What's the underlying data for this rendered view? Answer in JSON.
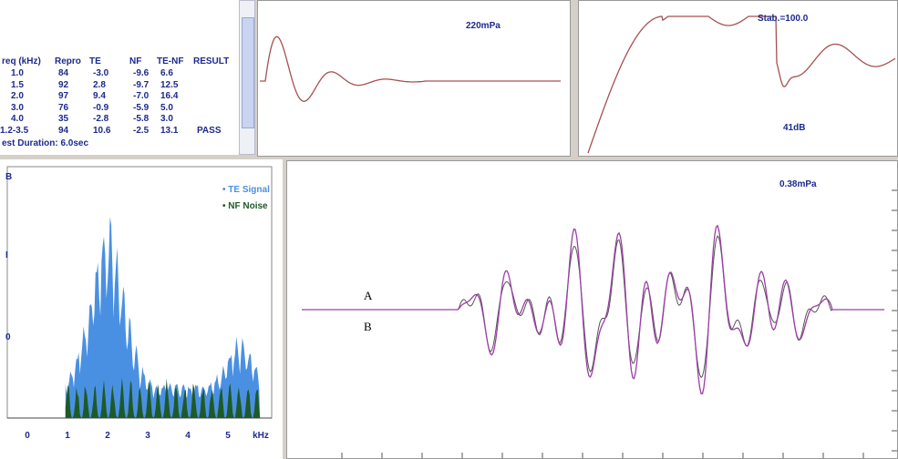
{
  "results_table": {
    "headers": [
      "req (kHz)",
      "Repro",
      "TE",
      "NF",
      "TE-NF",
      "RESULT"
    ],
    "rows": [
      [
        "1.0",
        "84",
        "-3.0",
        "-9.6",
        "6.6",
        ""
      ],
      [
        "1.5",
        "92",
        "2.8",
        "-9.7",
        "12.5",
        ""
      ],
      [
        "2.0",
        "97",
        "9.4",
        "-7.0",
        "16.4",
        ""
      ],
      [
        "3.0",
        "76",
        "-0.9",
        "-5.9",
        "5.0",
        ""
      ],
      [
        "4.0",
        "35",
        "-2.8",
        "-5.8",
        "3.0",
        ""
      ],
      [
        "1.2-3.5",
        "94",
        "10.6",
        "-2.5",
        "13.1",
        "PASS"
      ]
    ],
    "duration": "est Duration: 6.0sec"
  },
  "stimulus_panel": {
    "label": "220mPa"
  },
  "stability_panel": {
    "stability": "Stab.=100.0",
    "level": "41dB"
  },
  "spectrum_panel": {
    "y_unit": "B",
    "y_labels": [
      "I",
      "0"
    ],
    "legend": [
      "TE Signal",
      "NF Noise"
    ],
    "x_ticks": [
      "0",
      "1",
      "2",
      "3",
      "4",
      "5"
    ],
    "x_unit": "kHz"
  },
  "response_panel": {
    "label": "0.38mPa",
    "trace_a": "A",
    "trace_b": "B"
  }
}
